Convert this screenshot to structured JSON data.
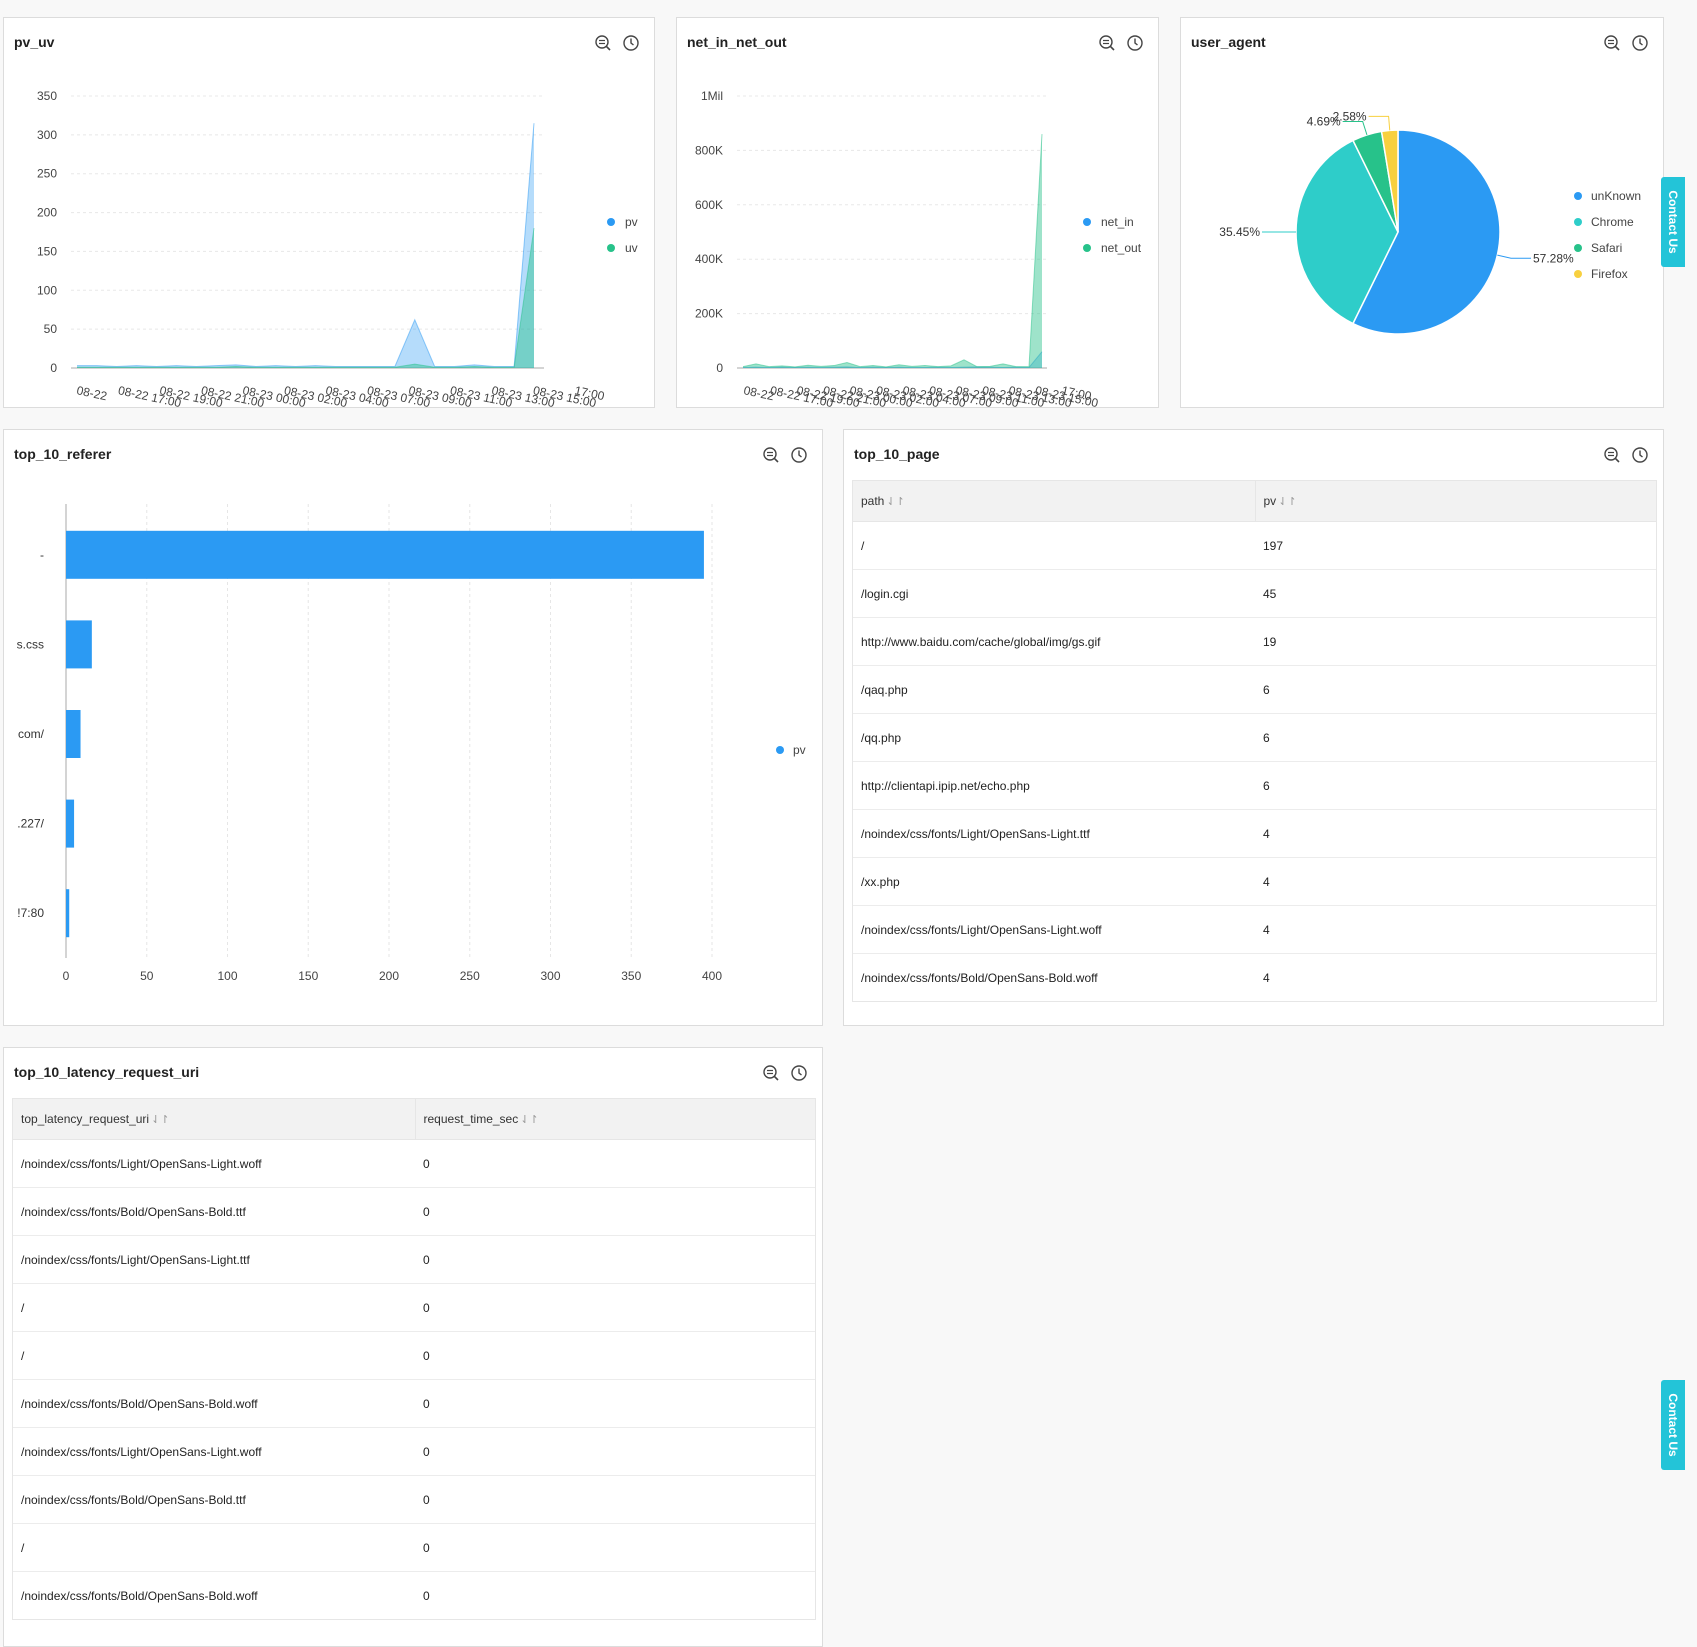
{
  "colors": {
    "blue": "#2b9af3",
    "green": "#27c28a",
    "teal": "#2ecdc9",
    "yellow": "#f8d03f",
    "accent": "#23c4d8"
  },
  "contact_label": "Contact Us",
  "panels": {
    "pv_uv": {
      "title": "pv_uv"
    },
    "net": {
      "title": "net_in_net_out"
    },
    "ua": {
      "title": "user_agent"
    },
    "referer": {
      "title": "top_10_referer"
    },
    "page": {
      "title": "top_10_page"
    },
    "latency": {
      "title": "top_10_latency_request_uri"
    }
  },
  "tables": {
    "page": {
      "headers": [
        "path",
        "pv"
      ],
      "rows": [
        [
          "/",
          "197"
        ],
        [
          "/login.cgi",
          "45"
        ],
        [
          "http://www.baidu.com/cache/global/img/gs.gif",
          "19"
        ],
        [
          "/qaq.php",
          "6"
        ],
        [
          "/qq.php",
          "6"
        ],
        [
          "http://clientapi.ipip.net/echo.php",
          "6"
        ],
        [
          "/noindex/css/fonts/Light/OpenSans-Light.ttf",
          "4"
        ],
        [
          "/xx.php",
          "4"
        ],
        [
          "/noindex/css/fonts/Light/OpenSans-Light.woff",
          "4"
        ],
        [
          "/noindex/css/fonts/Bold/OpenSans-Bold.woff",
          "4"
        ]
      ]
    },
    "latency": {
      "headers": [
        "top_latency_request_uri",
        "request_time_sec"
      ],
      "rows": [
        [
          "/noindex/css/fonts/Light/OpenSans-Light.woff",
          "0"
        ],
        [
          "/noindex/css/fonts/Bold/OpenSans-Bold.ttf",
          "0"
        ],
        [
          "/noindex/css/fonts/Light/OpenSans-Light.ttf",
          "0"
        ],
        [
          "/",
          "0"
        ],
        [
          "/",
          "0"
        ],
        [
          "/noindex/css/fonts/Bold/OpenSans-Bold.woff",
          "0"
        ],
        [
          "/noindex/css/fonts/Light/OpenSans-Light.woff",
          "0"
        ],
        [
          "/noindex/css/fonts/Bold/OpenSans-Bold.ttf",
          "0"
        ],
        [
          "/",
          "0"
        ],
        [
          "/noindex/css/fonts/Bold/OpenSans-Bold.woff",
          "0"
        ]
      ]
    }
  },
  "chart_data": [
    {
      "id": "pv_uv",
      "type": "area",
      "x_tick_labels": [
        "08-22",
        "08-22 17:00",
        "08-22 19:00",
        "08-22 21:00",
        "08-23 00:00",
        "08-23 02:00",
        "08-23 04:00",
        "08-23 07:00",
        "08-23 09:00",
        "08-23 11:00",
        "08-23 13:00",
        "08-23 15:00",
        "17:00"
      ],
      "y_ticks": [
        "0",
        "50",
        "100",
        "150",
        "200",
        "250",
        "300",
        "350"
      ],
      "ylim": [
        0,
        350
      ],
      "x": [
        0,
        1,
        2,
        3,
        4,
        5,
        6,
        7,
        8,
        9,
        10,
        11,
        12,
        13,
        14,
        15,
        16,
        17,
        18,
        19,
        20,
        21,
        22,
        23
      ],
      "series": [
        {
          "name": "pv",
          "color": "#2b9af3",
          "values": [
            3,
            3,
            2,
            3,
            2,
            3,
            2,
            3,
            4,
            2,
            3,
            2,
            3,
            2,
            2,
            2,
            2,
            62,
            2,
            2,
            4,
            2,
            2,
            315
          ]
        },
        {
          "name": "uv",
          "color": "#27c28a",
          "values": [
            1,
            1,
            1,
            1,
            1,
            1,
            1,
            1,
            2,
            1,
            1,
            1,
            1,
            1,
            1,
            1,
            1,
            5,
            1,
            1,
            2,
            1,
            1,
            180
          ]
        }
      ],
      "legend_position": "right"
    },
    {
      "id": "net",
      "type": "area",
      "x_tick_labels": [
        "08-22",
        "08-22 17:00",
        "08-22 19:00",
        "08-22 21:00",
        "08-23 00:00",
        "08-23 02:00",
        "08-23 04:00",
        "08-23 07:00",
        "08-23 09:00",
        "08-23 11:00",
        "08-23 13:00",
        "08-23 15:00",
        "17:00"
      ],
      "y_ticks": [
        "0",
        "200K",
        "400K",
        "600K",
        "800K",
        "1Mil"
      ],
      "ylim": [
        0,
        1000000
      ],
      "x": [
        0,
        1,
        2,
        3,
        4,
        5,
        6,
        7,
        8,
        9,
        10,
        11,
        12,
        13,
        14,
        15,
        16,
        17,
        18,
        19,
        20,
        21,
        22,
        23
      ],
      "series": [
        {
          "name": "net_in",
          "color": "#2b9af3",
          "values": [
            2000,
            3000,
            2000,
            3000,
            2000,
            3000,
            2000,
            3000,
            4000,
            2000,
            3000,
            2000,
            3000,
            2000,
            2000,
            3000,
            2000,
            3000,
            4000,
            3000,
            2000,
            3000,
            2000,
            60000
          ]
        },
        {
          "name": "net_out",
          "color": "#27c28a",
          "values": [
            5000,
            15000,
            5000,
            8000,
            4000,
            10000,
            6000,
            9000,
            20000,
            5000,
            9000,
            4000,
            12000,
            6000,
            9000,
            5000,
            8000,
            30000,
            5000,
            6000,
            15000,
            5000,
            5000,
            860000
          ]
        }
      ],
      "legend_position": "right"
    },
    {
      "id": "ua",
      "type": "pie",
      "slices": [
        {
          "name": "unKnown",
          "value": 57.28,
          "label": "57.28%",
          "color": "#2b9af3"
        },
        {
          "name": "Chrome",
          "value": 35.45,
          "label": "35.45%",
          "color": "#2ecdc9"
        },
        {
          "name": "Safari",
          "value": 4.69,
          "label": "4.69%",
          "color": "#27c28a"
        },
        {
          "name": "Firefox",
          "value": 2.58,
          "label": "2.58%",
          "color": "#f8d03f"
        }
      ],
      "legend_position": "right"
    },
    {
      "id": "referer",
      "type": "bar",
      "orientation": "horizontal",
      "categories": [
        "-",
        "s.css",
        "com/",
        ".227/",
        "!7:80"
      ],
      "series": [
        {
          "name": "pv",
          "color": "#2b9af3",
          "values": [
            395,
            16,
            9,
            5,
            2
          ]
        }
      ],
      "x_ticks": [
        "0",
        "50",
        "100",
        "150",
        "200",
        "250",
        "300",
        "350",
        "400"
      ],
      "xlim": [
        0,
        400
      ],
      "legend_position": "right"
    }
  ]
}
